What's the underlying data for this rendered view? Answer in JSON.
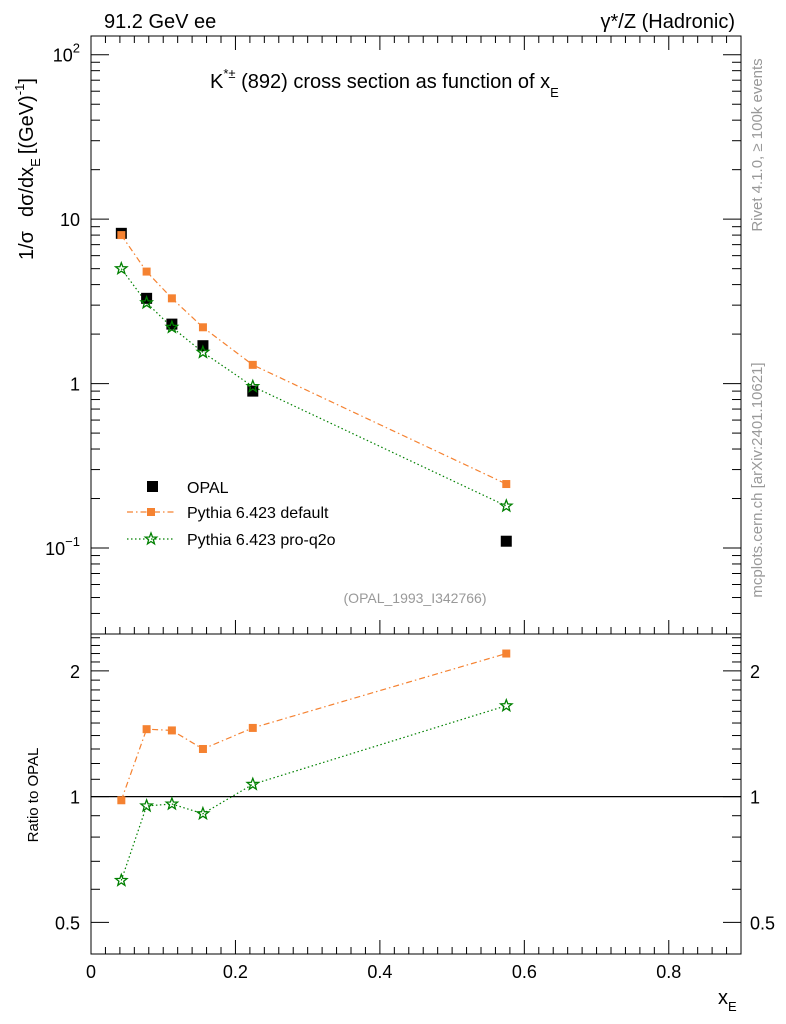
{
  "header": {
    "left": "91.2 GeV ee",
    "right": "γ*/Z (Hadronic)"
  },
  "side_labels": {
    "rivet": "Rivet 4.1.0, ≥ 100k events",
    "mcplots": "mcplots.cern.ch [arXiv:2401.10621]"
  },
  "colors": {
    "opal": "#000000",
    "pythia_default": "#f58231",
    "pythia_proq2o": "#008000",
    "axis": "#000000",
    "watermark": "#999999"
  },
  "chart_data": [
    {
      "type": "line",
      "title_main": "K",
      "title_sup": "*±",
      "title_rest": " (892) cross section as function of x",
      "title_sub": "E",
      "ylabel_parts": [
        "1/σ",
        "dσ/dx",
        "E",
        "[(GeV)",
        "-1",
        "]"
      ],
      "yscale": "log",
      "xlim": [
        0,
        0.9
      ],
      "ylim": [
        0.03,
        130
      ],
      "x_ticks": [
        0,
        0.2,
        0.4,
        0.6,
        0.8
      ],
      "y_ticks": [
        {
          "value": 0.1,
          "base": "10",
          "exp": "−1"
        },
        {
          "value": 1,
          "base": "1",
          "exp": ""
        },
        {
          "value": 10,
          "base": "10",
          "exp": ""
        },
        {
          "value": 100,
          "base": "10",
          "exp": "2"
        }
      ],
      "watermark": "(OPAL_1993_I342766)",
      "legend": [
        "OPAL",
        "Pythia 6.423 default",
        "Pythia 6.423 pro-q2o"
      ],
      "x": [
        0.042,
        0.077,
        0.112,
        0.155,
        0.224,
        0.575
      ],
      "series": [
        {
          "name": "OPAL",
          "marker": "square",
          "values": [
            8.2,
            3.3,
            2.3,
            1.7,
            0.9,
            0.11
          ]
        },
        {
          "name": "Pythia 6.423 default",
          "marker": "small-square",
          "line": "dash-dot",
          "values": [
            8.0,
            4.8,
            3.3,
            2.2,
            1.3,
            0.245
          ]
        },
        {
          "name": "Pythia 6.423 pro-q2o",
          "marker": "star",
          "line": "dotted",
          "values": [
            5.0,
            3.1,
            2.2,
            1.55,
            0.96,
            0.18
          ]
        }
      ]
    },
    {
      "type": "line",
      "ylabel": "Ratio to OPAL",
      "xlabel_main": "x",
      "xlabel_sub": "E",
      "yscale": "log",
      "xlim": [
        0,
        0.9
      ],
      "ylim": [
        0.42,
        2.45
      ],
      "y_ticks": [
        0.5,
        1,
        2
      ],
      "reference": 1,
      "x": [
        0.042,
        0.077,
        0.112,
        0.155,
        0.224,
        0.575
      ],
      "series": [
        {
          "name": "Pythia 6.423 default",
          "values": [
            0.98,
            1.45,
            1.44,
            1.3,
            1.46,
            2.2
          ]
        },
        {
          "name": "Pythia 6.423 pro-q2o",
          "values": [
            0.63,
            0.95,
            0.96,
            0.91,
            1.07,
            1.65
          ]
        }
      ]
    }
  ]
}
